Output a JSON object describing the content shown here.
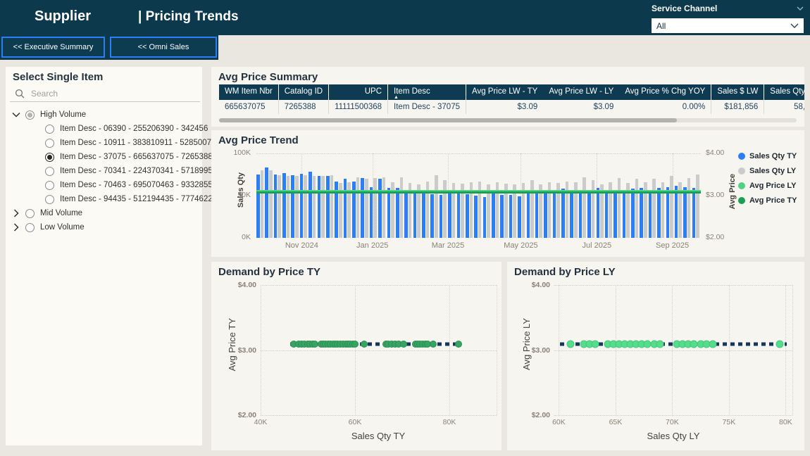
{
  "header": {
    "brand": "Supplier",
    "title": "| Pricing Trends",
    "service_channel": {
      "label": "Service Channel",
      "value": "All",
      "chevron_icon": "chevron-down-icon"
    }
  },
  "nav": {
    "buttons": [
      "<< Executive Summary",
      "<< Omni Sales"
    ]
  },
  "sidebar": {
    "title": "Select Single Item",
    "search_placeholder": "Search",
    "search_icon": "search-icon",
    "tree": [
      {
        "label": "High Volume",
        "state": "expanded",
        "radio": "partial",
        "items": [
          {
            "label": "Item Desc - 06390 - 255206390 - 342456",
            "radio": "off"
          },
          {
            "label": "Item Desc - 10911 - 383810911 - 5285007",
            "radio": "off"
          },
          {
            "label": "Item Desc - 37075 - 665637075 - 7265388",
            "radio": "on"
          },
          {
            "label": "Item Desc - 70341 - 224370341 - 5718995",
            "radio": "off"
          },
          {
            "label": "Item Desc - 70463 - 695070463 - 9332855",
            "radio": "off"
          },
          {
            "label": "Item Desc - 94435 - 512194435 - 7774622",
            "radio": "off"
          }
        ]
      },
      {
        "label": "Mid Volume",
        "state": "collapsed",
        "radio": "off",
        "items": []
      },
      {
        "label": "Low Volume",
        "state": "collapsed",
        "radio": "off",
        "items": []
      }
    ]
  },
  "summary": {
    "title": "Avg Price Summary",
    "columns": [
      "WM Item Nbr",
      "Catalog ID",
      "UPC",
      "Item Desc",
      "Avg Price LW - TY",
      "Avg Price LW - LY",
      "Avg Price % Chg YOY",
      "Sales $ LW",
      "Sales Qty"
    ],
    "sorted_column": "Item Desc",
    "sort_direction": "asc",
    "row": [
      "665637075",
      "7265388",
      "11111500368",
      "Item Desc - 37075",
      "$3.09",
      "$3.09",
      "0.00%",
      "$181,856",
      "58,"
    ]
  },
  "chart_data": [
    {
      "type": "bar",
      "title": "Avg Price Trend",
      "y_left": {
        "label": "Sales Qty",
        "ticks": [
          "0K",
          "50K",
          "100K"
        ],
        "min": 0,
        "max": 100
      },
      "y_right": {
        "label": "Avg Price",
        "ticks": [
          "$2.00",
          "$3.00",
          "$4.00"
        ],
        "min": 2,
        "max": 4
      },
      "x_months": [
        {
          "label": "Nov 2024",
          "pct": 10.2
        },
        {
          "label": "Jan 2025",
          "pct": 26.1
        },
        {
          "label": "Mar 2025",
          "pct": 43.1
        },
        {
          "label": "May 2025",
          "pct": 59.5
        },
        {
          "label": "Jul 2025",
          "pct": 76.6
        },
        {
          "label": "Sep 2025",
          "pct": 93.6
        }
      ],
      "series": [
        {
          "name": "Sales Qty TY",
          "color": "#2b7ef6",
          "values": [
            75,
            83,
            75,
            77,
            74,
            76,
            78,
            73,
            73,
            67,
            70,
            67,
            71,
            60,
            70,
            59,
            59,
            54,
            54,
            57,
            52,
            51,
            55,
            53,
            52,
            50,
            48,
            53,
            51,
            51,
            49,
            55,
            54,
            54,
            55,
            58,
            55,
            56,
            55,
            59,
            55,
            56,
            54,
            58,
            59,
            56,
            59,
            60,
            62,
            60,
            59
          ]
        },
        {
          "name": "Sales Qty LY",
          "color": "#cbcbcb",
          "values": [
            80,
            80,
            74,
            73,
            73,
            74,
            73,
            73,
            74,
            65,
            66,
            72,
            70,
            71,
            72,
            66,
            72,
            65,
            63,
            67,
            74,
            68,
            65,
            64,
            66,
            67,
            63,
            66,
            64,
            63,
            65,
            68,
            63,
            66,
            65,
            67,
            66,
            72,
            68,
            63,
            66,
            71,
            65,
            70,
            66,
            70,
            66,
            73,
            66,
            71,
            75
          ]
        }
      ],
      "lines": [
        {
          "name": "Avg Price LY",
          "color": "#4fd382",
          "value": 3.09
        },
        {
          "name": "Avg Price TY",
          "color": "#17a154",
          "value": 3.09
        }
      ],
      "legend": [
        {
          "label": "Sales Qty TY",
          "color": "#2b7ef6"
        },
        {
          "label": "Sales Qty LY",
          "color": "#cbcbcb"
        },
        {
          "label": "Avg Price LY",
          "color": "#4fd382"
        },
        {
          "label": "Avg Price TY",
          "color": "#17a154"
        }
      ]
    },
    {
      "type": "scatter",
      "title": "Demand by Price TY",
      "xlabel": "Sales Qty TY",
      "ylabel": "Avg Price TY",
      "xlim": [
        40,
        90
      ],
      "ylim": [
        2,
        4
      ],
      "x_ticks": [
        {
          "label": "40K",
          "v": 40
        },
        {
          "label": "60K",
          "v": 60
        },
        {
          "label": "80K",
          "v": 80
        }
      ],
      "y_ticks": [
        "$2.00",
        "$3.00",
        "$4.00"
      ],
      "y_value": 3.09,
      "point_color": "#36a563",
      "point_edge": "#2c8f54",
      "point_size": 10,
      "points": [
        47,
        48,
        48.7,
        49.3,
        50,
        50.5,
        51,
        51.5,
        52.8,
        53.3,
        53.8,
        54.3,
        54.8,
        55.3,
        55.8,
        56.3,
        56.9,
        57.4,
        58,
        58.5,
        59,
        59.5,
        60,
        62,
        66.5,
        67,
        67.7,
        68.5,
        69.2,
        70.3,
        72.8,
        73.3,
        73.8,
        74.3,
        74.9,
        75.4,
        76.5,
        82
      ],
      "trend": {
        "from": 46.3,
        "to": 82.6,
        "color": "#16365c"
      }
    },
    {
      "type": "scatter",
      "title": "Demand by Price LY",
      "xlabel": "Sales Qty LY",
      "ylabel": "Avg Price LY",
      "xlim": [
        59.6,
        80.6
      ],
      "ylim": [
        2,
        4
      ],
      "x_ticks": [
        {
          "label": "60K",
          "v": 60
        },
        {
          "label": "65K",
          "v": 65
        },
        {
          "label": "70K",
          "v": 70
        },
        {
          "label": "75K",
          "v": 75
        },
        {
          "label": "80K",
          "v": 80
        }
      ],
      "y_ticks": [
        "$2.00",
        "$3.00",
        "$4.00"
      ],
      "y_value": 3.09,
      "point_color": "#55dc8d",
      "point_edge": "#46c87b",
      "point_size": 11,
      "points": [
        61,
        62.2,
        62.7,
        63.2,
        64.3,
        64.8,
        65.3,
        65.8,
        66.3,
        66.8,
        67.3,
        67.8,
        68.4,
        68.9,
        70.4,
        70.9,
        71.4,
        71.9,
        72.5,
        73,
        73.6,
        79.5
      ],
      "trend": {
        "from": 60.1,
        "to": 80.1,
        "color": "#16365c"
      }
    }
  ],
  "colors": {
    "header_navy": "#0c3a4c",
    "accent_blue": "#2b7ef6",
    "table_header_navy": "#0e3a52",
    "bar_ty": "#2b7ef6",
    "bar_ly": "#cbcbcb",
    "avg_price_ty": "#17a154",
    "avg_price_ly": "#4fd382",
    "scatter_ty": "#36a563",
    "scatter_ly": "#55dc8d",
    "trend_dash_navy": "#16365c"
  }
}
